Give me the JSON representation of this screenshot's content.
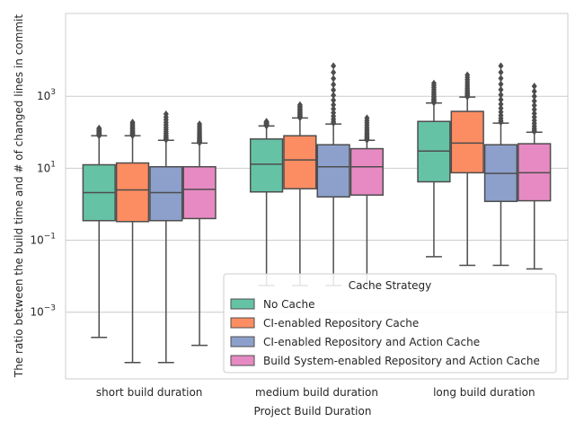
{
  "chart_data": {
    "type": "box",
    "xlabel": "Project Build Duration",
    "ylabel": "The ratio between the build time and # of changed lines in commit",
    "yscale": "log",
    "ylim": [
      1.4e-05,
      200000
    ],
    "y_ticks": [
      {
        "value": 0.001,
        "base": "10",
        "exp": "−3"
      },
      {
        "value": 0.1,
        "base": "10",
        "exp": "−1"
      },
      {
        "value": 10,
        "base": "10",
        "exp": "1"
      },
      {
        "value": 1000,
        "base": "10",
        "exp": "3"
      }
    ],
    "grid": "horizontal",
    "categories": [
      "short build duration",
      "medium build duration",
      "long build duration"
    ],
    "legend": {
      "title": "Cache Strategy",
      "placement": "lower right"
    },
    "series": [
      {
        "name": "No Cache",
        "color": "#66c2a5",
        "boxes": [
          {
            "whislo": 0.0002,
            "q1": 0.35,
            "med": 2.1,
            "q3": 12.5,
            "whishi": 80,
            "outlier_max": 130
          },
          {
            "whislo": 0.0055,
            "q1": 2.2,
            "med": 13,
            "q3": 65,
            "whishi": 150,
            "outlier_max": 200
          },
          {
            "whislo": 0.035,
            "q1": 4.2,
            "med": 30,
            "q3": 200,
            "whishi": 650,
            "outlier_max": 2300
          }
        ]
      },
      {
        "name": "CI-enabled Repository Cache",
        "color": "#fc8d62",
        "boxes": [
          {
            "whislo": 4e-05,
            "q1": 0.33,
            "med": 2.5,
            "q3": 14,
            "whishi": 80,
            "outlier_max": 190
          },
          {
            "whislo": 0.0055,
            "q1": 2.7,
            "med": 17,
            "q3": 80,
            "whishi": 250,
            "outlier_max": 580
          },
          {
            "whislo": 0.02,
            "q1": 7.5,
            "med": 50,
            "q3": 380,
            "whishi": 950,
            "outlier_max": 3900
          }
        ]
      },
      {
        "name": "CI-enabled Repository and Action Cache",
        "color": "#8da0cb",
        "boxes": [
          {
            "whislo": 4e-05,
            "q1": 0.35,
            "med": 2.1,
            "q3": 11,
            "whishi": 60,
            "outlier_max": 320
          },
          {
            "whislo": 0.0055,
            "q1": 1.6,
            "med": 11,
            "q3": 45,
            "whishi": 170,
            "outlier_max": 7000
          },
          {
            "whislo": 0.02,
            "q1": 1.2,
            "med": 7.2,
            "q3": 45,
            "whishi": 180,
            "outlier_max": 7000
          }
        ]
      },
      {
        "name": "Build System-enabled Repository and Action Cache",
        "color": "#e78ac3",
        "boxes": [
          {
            "whislo": 0.00012,
            "q1": 0.4,
            "med": 2.6,
            "q3": 11,
            "whishi": 50,
            "outlier_max": 170
          },
          {
            "whislo": 0.0055,
            "q1": 1.8,
            "med": 11,
            "q3": 35,
            "whishi": 60,
            "outlier_max": 250
          },
          {
            "whislo": 0.016,
            "q1": 1.25,
            "med": 7.5,
            "q3": 48,
            "whishi": 100,
            "outlier_max": 1900
          }
        ]
      }
    ]
  }
}
